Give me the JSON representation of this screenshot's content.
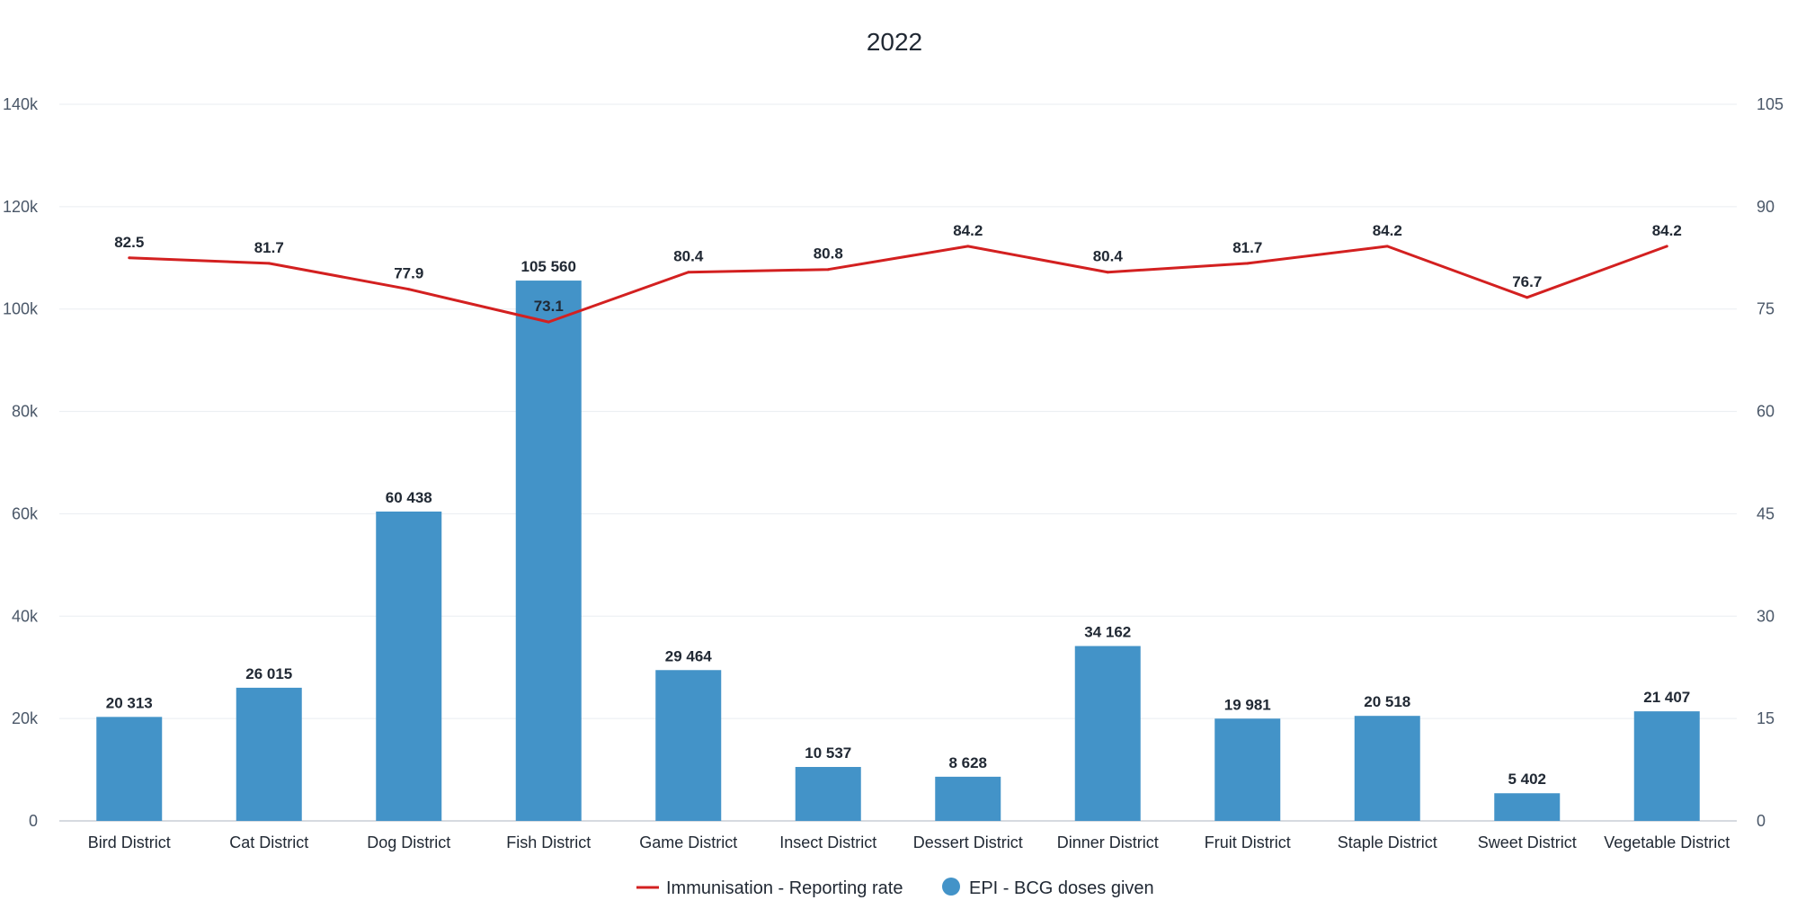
{
  "chart_data": {
    "type": "bar",
    "title": "2022",
    "categories": [
      "Bird District",
      "Cat District",
      "Dog District",
      "Fish District",
      "Game District",
      "Insect District",
      "Dessert District",
      "Dinner District",
      "Fruit District",
      "Staple District",
      "Sweet District",
      "Vegetable District"
    ],
    "series": [
      {
        "name": "EPI - BCG doses given",
        "type": "bar",
        "axis": "left",
        "color": "#4393c8",
        "values": [
          20313,
          26015,
          60438,
          105560,
          29464,
          10537,
          8628,
          34162,
          19981,
          20518,
          5402,
          21407
        ],
        "labels": [
          "20 313",
          "26 015",
          "60 438",
          "105 560",
          "29 464",
          "10 537",
          "8 628",
          "34 162",
          "19 981",
          "20 518",
          "5 402",
          "21 407"
        ]
      },
      {
        "name": "Immunisation - Reporting rate",
        "type": "line",
        "axis": "right",
        "color": "#d32020",
        "values": [
          82.5,
          81.7,
          77.9,
          73.1,
          80.4,
          80.8,
          84.2,
          80.4,
          81.7,
          84.2,
          76.7,
          84.2
        ],
        "labels": [
          "82.5",
          "81.7",
          "77.9",
          "73.1",
          "80.4",
          "80.8",
          "84.2",
          "80.4",
          "81.7",
          "84.2",
          "76.7",
          "84.2"
        ]
      }
    ],
    "y_left": {
      "ylim": [
        0,
        140000
      ],
      "ticks": [
        0,
        20000,
        40000,
        60000,
        80000,
        100000,
        120000,
        140000
      ],
      "tick_labels": [
        "0",
        "20k",
        "40k",
        "60k",
        "80k",
        "100k",
        "120k",
        "140k"
      ]
    },
    "y_right": {
      "ylim": [
        0,
        105
      ],
      "ticks": [
        0,
        15,
        30,
        45,
        60,
        75,
        90,
        105
      ],
      "tick_labels": [
        "0",
        "15",
        "30",
        "45",
        "60",
        "75",
        "90",
        "105"
      ]
    },
    "grid": true,
    "legend": {
      "position": "bottom",
      "items": [
        {
          "label": "Immunisation - Reporting rate",
          "symbol": "line",
          "color": "#d32020"
        },
        {
          "label": "EPI - BCG doses given",
          "symbol": "circle",
          "color": "#4393c8"
        }
      ]
    }
  }
}
